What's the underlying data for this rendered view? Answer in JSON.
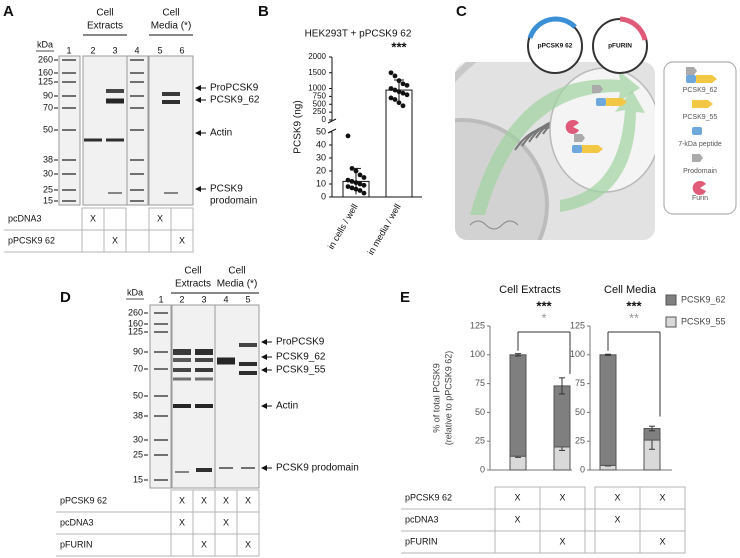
{
  "panel_a": {
    "label": "A",
    "groups": [
      [
        "Cell",
        "Extracts"
      ],
      [
        "Cell",
        "Media (*)"
      ]
    ],
    "unit": "kDa",
    "lanes": [
      "1",
      "2",
      "3",
      "4",
      "5",
      "6"
    ],
    "markers": [
      260,
      160,
      125,
      90,
      70,
      50,
      38,
      30,
      25,
      15
    ],
    "bands": [
      [
        "ProPCSK9"
      ],
      [
        "PCSK9_62"
      ],
      [
        "Actin"
      ],
      [
        "PCSK9",
        "prodomain"
      ]
    ],
    "table": {
      "rows": [
        {
          "name": "pcDNA3",
          "cells": [
            "X",
            null,
            "X",
            null
          ]
        },
        {
          "name": "pPCSK9 62",
          "cells": [
            null,
            "X",
            null,
            "X"
          ]
        }
      ]
    }
  },
  "panel_b": {
    "label": "B",
    "title": "HEK293T + pPCSK9 62",
    "ylabel": "PCSK9 (ng)",
    "categories": [
      "in cells / well",
      "in media / well"
    ],
    "significance": "***",
    "means": [
      12,
      950
    ],
    "sd": [
      10,
      320
    ],
    "points": [
      [
        47,
        22,
        20,
        17,
        15,
        13,
        12,
        11,
        10,
        9,
        8,
        7,
        6,
        5,
        3
      ],
      [
        1500,
        1400,
        1250,
        1150,
        1100,
        1000,
        950,
        900,
        850,
        800,
        700,
        650,
        550,
        450
      ]
    ],
    "ylim_upper": [
      0,
      2000
    ],
    "yticks_upper": [
      0,
      250,
      500,
      750,
      1000,
      1500,
      2000
    ],
    "ylim_lower": [
      0,
      50
    ],
    "yticks_lower": [
      0,
      10,
      20,
      30,
      40,
      50
    ]
  },
  "panel_c": {
    "label": "C",
    "plasmids": [
      "pPCSK9 62",
      "pFURIN"
    ],
    "legend": [
      "PCSK9_62",
      "PCSK9_55",
      "7-kDa peptide",
      "Prodomain",
      "Furin"
    ]
  },
  "panel_d": {
    "label": "D",
    "groups": [
      [
        "Cell",
        "Extracts"
      ],
      [
        "Cell",
        "Media (*)"
      ]
    ],
    "unit": "kDa",
    "lanes": [
      "1",
      "2",
      "3",
      "4",
      "5"
    ],
    "markers": [
      260,
      160,
      125,
      90,
      70,
      50,
      38,
      30,
      25,
      15
    ],
    "bands": [
      "ProPCSK9",
      "PCSK9_62",
      "PCSK9_55",
      "Actin",
      "PCSK9 prodomain"
    ],
    "table": {
      "rows": [
        {
          "name": "pPCSK9 62",
          "cells": [
            "X",
            "X",
            "X",
            "X"
          ]
        },
        {
          "name": "pcDNA3",
          "cells": [
            "X",
            null,
            "X",
            null
          ]
        },
        {
          "name": "pFURIN",
          "cells": [
            null,
            "X",
            null,
            "X"
          ]
        }
      ]
    }
  },
  "panel_e": {
    "label": "E",
    "ylabel": [
      "% of total PCSK9",
      "(relative to pPCSK9 62)"
    ],
    "ylim": [
      0,
      125
    ],
    "yticks": [
      0,
      25,
      50,
      75,
      100,
      125
    ],
    "legend": [
      {
        "name": "PCSK9_62",
        "color": "#7f7f7f"
      },
      {
        "name": "PCSK9_55",
        "color": "#d9d9d9"
      }
    ],
    "charts": [
      {
        "title": "Cell Extracts",
        "significance": [
          "***",
          "*"
        ],
        "stacks": [
          {
            "values": [
              88,
              53
            ],
            "errors": [
              1,
              7
            ]
          },
          {
            "values": [
              12,
              20
            ],
            "errors": [
              1,
              3
            ]
          }
        ]
      },
      {
        "title": "Cell Media",
        "significance": [
          "***",
          "**"
        ],
        "stacks": [
          {
            "values": [
              96,
              10
            ],
            "errors": [
              0.5,
              2
            ]
          },
          {
            "values": [
              4,
              26
            ],
            "errors": [
              0.5,
              8
            ]
          }
        ]
      }
    ],
    "table": {
      "rows": [
        {
          "name": "pPCSK9 62",
          "cells": [
            "X",
            "X",
            "X",
            "X"
          ]
        },
        {
          "name": "pcDNA3",
          "cells": [
            "X",
            null,
            "X",
            null
          ]
        },
        {
          "name": "pFURIN",
          "cells": [
            null,
            "X",
            null,
            "X"
          ]
        }
      ]
    }
  }
}
